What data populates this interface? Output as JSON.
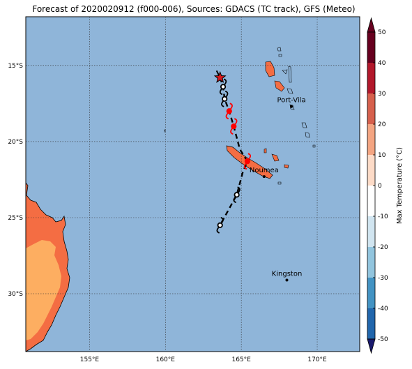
{
  "title": "Forecast of 2020020912 (f000-006), Sources: GDACS (TC track), GFS (Meteo)",
  "map": {
    "lon_range": [
      150.8,
      172.8
    ],
    "lat_range": [
      -33.8,
      -11.8
    ],
    "lat_ticks": [
      {
        "value": -15,
        "label": "15°S"
      },
      {
        "value": -20,
        "label": "20°S"
      },
      {
        "value": -25,
        "label": "25°S"
      },
      {
        "value": -30,
        "label": "30°S"
      }
    ],
    "lon_ticks": [
      {
        "value": 155,
        "label": "155°E"
      },
      {
        "value": 160,
        "label": "160°E"
      },
      {
        "value": 165,
        "label": "165°E"
      },
      {
        "value": 170,
        "label": "170°E"
      }
    ],
    "ocean_color": "#8fb5d9",
    "places": [
      {
        "name": "Port-Vila",
        "lon": 168.3,
        "lat": -17.7
      },
      {
        "name": "Noumea",
        "lon": 166.5,
        "lat": -22.3
      },
      {
        "name": "Kingston",
        "lon": 168.0,
        "lat": -29.1
      }
    ],
    "track": [
      {
        "lon": 163.6,
        "lat": -15.8,
        "type": "star"
      },
      {
        "lon": 163.8,
        "lat": -16.4,
        "type": "cyclone"
      },
      {
        "lon": 163.9,
        "lat": -17.2,
        "type": "cyclone"
      },
      {
        "lon": 164.2,
        "lat": -18.0,
        "type": "cyclone-red"
      },
      {
        "lon": 164.5,
        "lat": -19.0,
        "type": "cyclone-red"
      },
      {
        "lon": 164.9,
        "lat": -20.5,
        "type": "line"
      },
      {
        "lon": 165.4,
        "lat": -21.3,
        "type": "cyclone-red"
      },
      {
        "lon": 165.1,
        "lat": -22.0,
        "type": "line"
      },
      {
        "lon": 164.7,
        "lat": -23.5,
        "type": "cyclone"
      },
      {
        "lon": 163.6,
        "lat": -25.5,
        "type": "cyclone"
      }
    ]
  },
  "colorbar": {
    "label": "Max Temperature (°C)",
    "ticks": [
      50,
      40,
      30,
      20,
      10,
      0,
      -10,
      -20,
      -30,
      -40,
      -50
    ],
    "colors": [
      "#67001f",
      "#b2182b",
      "#d6604d",
      "#f4a582",
      "#fddbc7",
      "#ffffff",
      "#d1e5f0",
      "#92c5de",
      "#4393c3",
      "#2166ac",
      "#1a1a6e"
    ]
  }
}
